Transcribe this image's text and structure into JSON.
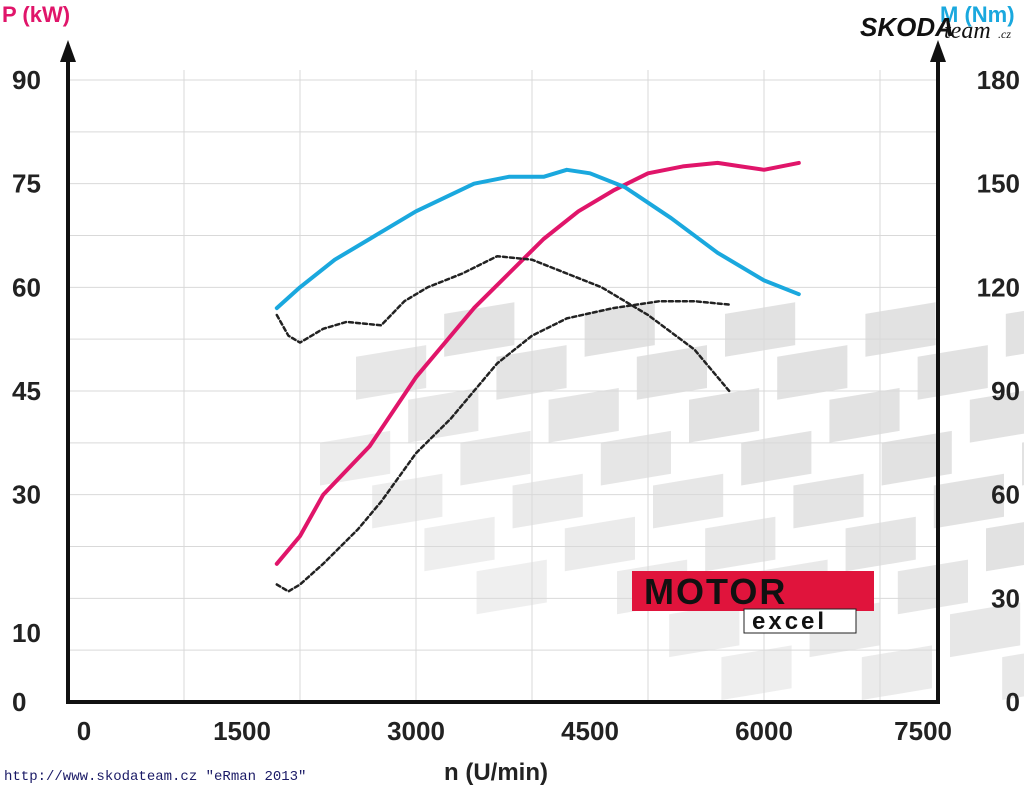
{
  "brand": {
    "name": "SKODA",
    "suffix": "team",
    "suffix_end": ".cz"
  },
  "logo": {
    "line1": "MOTOR",
    "line2": "excel"
  },
  "footer": "http://www.skodateam.cz \"eRman 2013\"",
  "colors": {
    "power": "#e0156a",
    "torque": "#1aa8de",
    "dotted": "#222222",
    "grid": "#d9d9d9"
  },
  "chart_data": {
    "type": "line",
    "xlabel": "n (U/min)",
    "ylabel_left": "P (kW)",
    "ylabel_right": "M (Nm)",
    "xlim": [
      0,
      7500
    ],
    "ylim_left": [
      0,
      90
    ],
    "ylim_right": [
      0,
      180
    ],
    "x_ticks": [
      "0",
      "1500",
      "3000",
      "4500",
      "6000",
      "7500"
    ],
    "y_ticks_left": [
      "0",
      "10",
      "30",
      "45",
      "60",
      "75",
      "90"
    ],
    "y_ticks_right": [
      "0",
      "30",
      "60",
      "90",
      "120",
      "150",
      "180"
    ],
    "grid": true,
    "series": [
      {
        "name": "P (kW)",
        "axis": "left",
        "style": "solid",
        "x": [
          1800,
          2000,
          2200,
          2600,
          3000,
          3500,
          3800,
          4100,
          4400,
          4700,
          5000,
          5300,
          5600,
          5800,
          6000,
          6300
        ],
        "y": [
          20,
          24,
          30,
          37,
          47,
          57,
          62,
          67,
          71,
          74,
          76.5,
          77.5,
          78,
          77.5,
          77,
          78
        ]
      },
      {
        "name": "M (Nm)",
        "axis": "right",
        "style": "solid",
        "x": [
          1800,
          2000,
          2300,
          2600,
          3000,
          3500,
          3800,
          4100,
          4300,
          4500,
          4800,
          5200,
          5600,
          6000,
          6300
        ],
        "y": [
          114,
          120,
          128,
          134,
          142,
          150,
          152,
          152,
          154,
          153,
          149,
          140,
          130,
          122,
          118
        ]
      },
      {
        "axis": "left",
        "style": "dotted",
        "x": [
          1800,
          1900,
          2000,
          2200,
          2500,
          2700,
          3000,
          3300,
          3700,
          4000,
          4300,
          4700,
          5100,
          5400,
          5700
        ],
        "y": [
          17,
          16,
          17,
          20,
          25,
          29,
          36,
          41,
          49,
          53,
          55.5,
          57,
          58,
          58,
          57.5
        ]
      },
      {
        "axis": "left",
        "style": "dotted",
        "x": [
          1800,
          1900,
          2000,
          2200,
          2400,
          2700,
          2900,
          3100,
          3400,
          3700,
          4000,
          4300,
          4600,
          5000,
          5400,
          5700
        ],
        "y": [
          56,
          53,
          52,
          54,
          55,
          54.5,
          58,
          60,
          62,
          64.5,
          64,
          62,
          60,
          56,
          51,
          45
        ]
      }
    ]
  }
}
